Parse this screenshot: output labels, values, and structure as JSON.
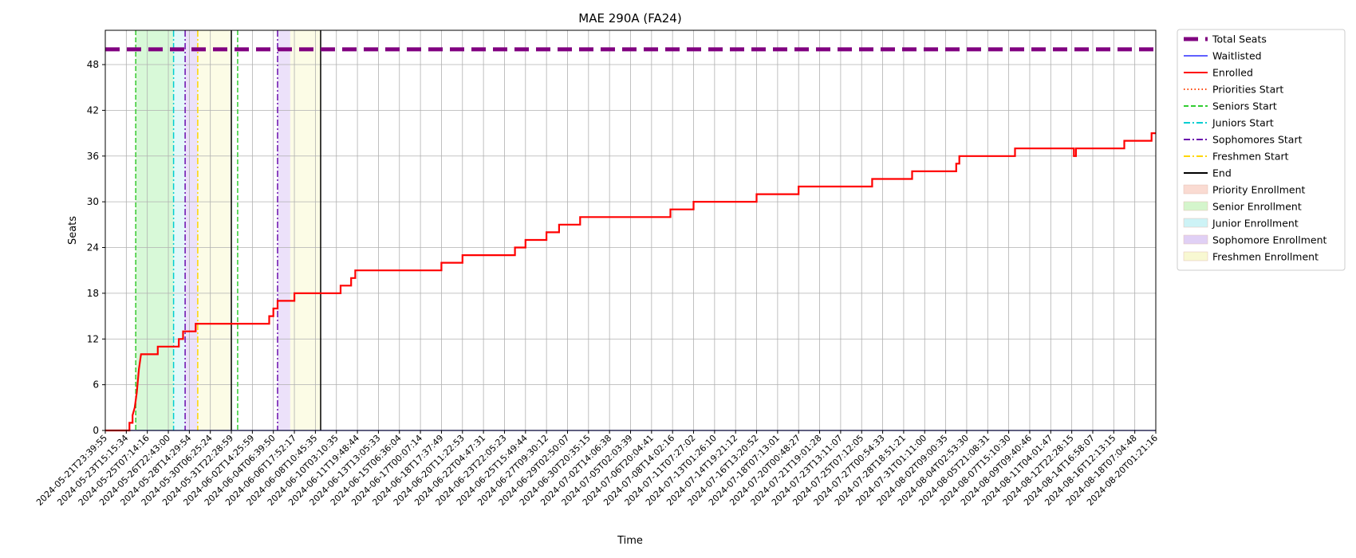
{
  "chart_data": {
    "type": "line",
    "title": "MAE 290A (FA24)",
    "xlabel": "Time",
    "ylabel": "Seats",
    "xlim": [
      "2024-05-21T23:39:55",
      "2024-08-20T01:21:16"
    ],
    "ylim": [
      0,
      52.5
    ],
    "yticks": [
      0,
      6,
      12,
      18,
      24,
      30,
      36,
      42,
      48
    ],
    "xticks": [
      "2024-05-21T23:39:55",
      "2024-05-23T15:15:34",
      "2024-05-25T07:14:16",
      "2024-05-26T22:43:00",
      "2024-05-28T14:29:54",
      "2024-05-30T06:25:24",
      "2024-05-31T22:28:59",
      "2024-06-02T14:25:59",
      "2024-06-04T06:39:50",
      "2024-06-06T17:52:17",
      "2024-06-08T10:45:35",
      "2024-06-10T03:10:35",
      "2024-06-11T19:48:44",
      "2024-06-13T13:05:33",
      "2024-06-15T06:36:04",
      "2024-06-17T00:07:14",
      "2024-06-18T17:37:49",
      "2024-06-20T11:22:53",
      "2024-06-22T04:47:31",
      "2024-06-23T22:05:23",
      "2024-06-25T15:49:44",
      "2024-06-27T09:30:12",
      "2024-06-29T02:50:07",
      "2024-06-30T20:35:15",
      "2024-07-02T14:06:38",
      "2024-07-05T02:03:39",
      "2024-07-06T20:04:41",
      "2024-07-08T14:02:16",
      "2024-07-11T07:27:02",
      "2024-07-13T01:26:10",
      "2024-07-14T19:21:12",
      "2024-07-16T13:20:52",
      "2024-07-18T07:13:01",
      "2024-07-20T00:48:27",
      "2024-07-21T19:01:28",
      "2024-07-23T13:11:07",
      "2024-07-25T07:12:05",
      "2024-07-27T00:54:33",
      "2024-07-28T18:51:21",
      "2024-07-31T01:11:00",
      "2024-08-02T09:00:35",
      "2024-08-04T02:53:30",
      "2024-08-05T21:08:31",
      "2024-08-07T15:10:30",
      "2024-08-09T09:40:46",
      "2024-08-11T04:01:47",
      "2024-08-12T22:28:15",
      "2024-08-14T16:58:07",
      "2024-08-16T12:13:15",
      "2024-08-18T07:04:48",
      "2024-08-20T01:21:16"
    ],
    "grid": true,
    "legend_position": "outside-right",
    "series": [
      {
        "name": "Total Seats",
        "color": "#800080",
        "style": "dashed-thick",
        "steps": [
          [
            0,
            50
          ],
          [
            50,
            50
          ]
        ]
      },
      {
        "name": "Waitlisted",
        "color": "#0000ff",
        "style": "solid",
        "steps": [
          [
            0,
            0
          ],
          [
            50,
            0
          ]
        ]
      },
      {
        "name": "Enrolled",
        "color": "#ff0000",
        "style": "solid",
        "steps": [
          [
            0,
            0
          ],
          [
            1.15,
            0
          ],
          [
            1.15,
            1
          ],
          [
            1.3,
            1
          ],
          [
            1.3,
            2
          ],
          [
            1.4,
            3
          ],
          [
            1.5,
            5
          ],
          [
            1.6,
            8
          ],
          [
            1.7,
            10
          ],
          [
            2.5,
            10
          ],
          [
            2.5,
            11
          ],
          [
            3.5,
            11
          ],
          [
            3.5,
            12
          ],
          [
            3.7,
            12
          ],
          [
            3.7,
            13
          ],
          [
            4.3,
            13
          ],
          [
            4.3,
            14
          ],
          [
            7.8,
            14
          ],
          [
            7.8,
            15
          ],
          [
            8.0,
            15
          ],
          [
            8.0,
            16
          ],
          [
            8.2,
            16
          ],
          [
            8.2,
            17
          ],
          [
            9.0,
            17
          ],
          [
            9.0,
            18
          ],
          [
            11.2,
            18
          ],
          [
            11.2,
            19
          ],
          [
            11.7,
            19
          ],
          [
            11.7,
            20
          ],
          [
            11.9,
            20
          ],
          [
            11.9,
            21
          ],
          [
            16.0,
            21
          ],
          [
            16.0,
            22
          ],
          [
            17.0,
            22
          ],
          [
            17.0,
            23
          ],
          [
            19.5,
            23
          ],
          [
            19.5,
            24
          ],
          [
            20.0,
            24
          ],
          [
            20.0,
            25
          ],
          [
            21.0,
            25
          ],
          [
            21.0,
            26
          ],
          [
            21.6,
            26
          ],
          [
            21.6,
            27
          ],
          [
            22.6,
            27
          ],
          [
            22.6,
            28
          ],
          [
            26.9,
            28
          ],
          [
            26.9,
            29
          ],
          [
            28.0,
            29
          ],
          [
            28.0,
            30
          ],
          [
            31.0,
            30
          ],
          [
            31.0,
            31
          ],
          [
            33.0,
            31
          ],
          [
            33.0,
            32
          ],
          [
            36.5,
            32
          ],
          [
            36.5,
            33
          ],
          [
            38.4,
            33
          ],
          [
            38.4,
            34
          ],
          [
            40.5,
            34
          ],
          [
            40.5,
            35
          ],
          [
            40.65,
            35
          ],
          [
            40.65,
            36
          ],
          [
            43.3,
            36
          ],
          [
            43.3,
            37
          ],
          [
            46.1,
            37
          ],
          [
            46.1,
            36
          ],
          [
            46.2,
            36
          ],
          [
            46.2,
            37
          ],
          [
            48.5,
            37
          ],
          [
            48.5,
            38
          ],
          [
            49.8,
            38
          ],
          [
            49.8,
            39
          ],
          [
            50,
            39
          ]
        ]
      }
    ],
    "markers": [
      {
        "name": "Priorities Start",
        "color": "#ff4500",
        "style": "dotted",
        "x": 1.45
      },
      {
        "name": "Seniors Start",
        "color": "#32cd32",
        "style": "dashed",
        "x": 1.45
      },
      {
        "name": "Seniors Start",
        "color": "#32cd32",
        "style": "dashed",
        "x": 6.3
      },
      {
        "name": "Juniors Start",
        "color": "#00ced1",
        "style": "dashdot",
        "x": 3.25
      },
      {
        "name": "Sophomores Start",
        "color": "#6a0dad",
        "style": "dashdot",
        "x": 3.8
      },
      {
        "name": "Sophomores Start",
        "color": "#6a0dad",
        "style": "dashdot",
        "x": 8.2
      },
      {
        "name": "Freshmen Start",
        "color": "#ffd700",
        "style": "dashdot",
        "x": 4.4
      },
      {
        "name": "End",
        "color": "#000000",
        "style": "solid",
        "x": 6.0
      },
      {
        "name": "End",
        "color": "#000000",
        "style": "solid",
        "x": 10.25
      }
    ],
    "regions": [
      {
        "name": "Senior Enrollment",
        "color": "#90ee90",
        "x0": 1.45,
        "x1": 3.25
      },
      {
        "name": "Junior Enrollment",
        "color": "#afeeee",
        "x0": 3.25,
        "x1": 3.8
      },
      {
        "name": "Sophomore Enrollment",
        "color": "#c9a9f0",
        "x0": 3.8,
        "x1": 4.4
      },
      {
        "name": "Freshmen Enrollment",
        "color": "#f5f5b8",
        "x0": 4.4,
        "x1": 6.0
      },
      {
        "name": "Sophomore Enrollment",
        "color": "#c9a9f0",
        "x0": 8.2,
        "x1": 8.8
      },
      {
        "name": "Freshmen Enrollment",
        "color": "#f5f5b8",
        "x0": 8.8,
        "x1": 10.25
      }
    ],
    "legend": [
      {
        "label": "Total Seats",
        "kind": "line",
        "color": "#800080",
        "style": "dashed-thick"
      },
      {
        "label": "Waitlisted",
        "kind": "line",
        "color": "#0000ff",
        "style": "solid-thin"
      },
      {
        "label": "Enrolled",
        "kind": "line",
        "color": "#ff0000",
        "style": "solid"
      },
      {
        "label": "Priorities Start",
        "kind": "line",
        "color": "#ff4500",
        "style": "dotted"
      },
      {
        "label": "Seniors Start",
        "kind": "line",
        "color": "#32cd32",
        "style": "dashed"
      },
      {
        "label": "Juniors Start",
        "kind": "line",
        "color": "#00ced1",
        "style": "dashdot"
      },
      {
        "label": "Sophomores Start",
        "kind": "line",
        "color": "#6a0dad",
        "style": "dashdot"
      },
      {
        "label": "Freshmen Start",
        "kind": "line",
        "color": "#ffd700",
        "style": "dashdot"
      },
      {
        "label": "End",
        "kind": "line",
        "color": "#000000",
        "style": "solid"
      },
      {
        "label": "Priority Enrollment",
        "kind": "patch",
        "color": "#fadbd2"
      },
      {
        "label": "Senior Enrollment",
        "kind": "patch",
        "color": "#d4f5cc"
      },
      {
        "label": "Junior Enrollment",
        "kind": "patch",
        "color": "#cdf3f6"
      },
      {
        "label": "Sophomore Enrollment",
        "kind": "patch",
        "color": "#e0d0f5"
      },
      {
        "label": "Freshmen Enrollment",
        "kind": "patch",
        "color": "#f8f8d2"
      }
    ]
  }
}
